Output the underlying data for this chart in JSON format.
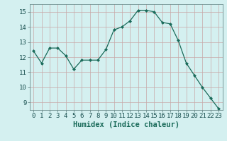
{
  "x": [
    0,
    1,
    2,
    3,
    4,
    5,
    6,
    7,
    8,
    9,
    10,
    11,
    12,
    13,
    14,
    15,
    16,
    17,
    18,
    19,
    20,
    21,
    22,
    23
  ],
  "y": [
    12.4,
    11.6,
    12.6,
    12.6,
    12.1,
    11.2,
    11.8,
    11.8,
    11.8,
    12.5,
    13.8,
    14.0,
    14.4,
    15.1,
    15.1,
    15.0,
    14.3,
    14.2,
    13.1,
    11.6,
    10.8,
    10.0,
    9.3,
    8.6
  ],
  "xlim": [
    -0.5,
    23.5
  ],
  "ylim": [
    8.5,
    15.5
  ],
  "yticks": [
    9,
    10,
    11,
    12,
    13,
    14,
    15
  ],
  "xticks": [
    0,
    1,
    2,
    3,
    4,
    5,
    6,
    7,
    8,
    9,
    10,
    11,
    12,
    13,
    14,
    15,
    16,
    17,
    18,
    19,
    20,
    21,
    22,
    23
  ],
  "xlabel": "Humidex (Indice chaleur)",
  "line_color": "#1a6b5a",
  "marker": "D",
  "marker_size": 2.0,
  "bg_color": "#d4f0f0",
  "grid_color": "#c8a8a8",
  "tick_label_fontsize": 6.5,
  "xlabel_fontsize": 7.5
}
